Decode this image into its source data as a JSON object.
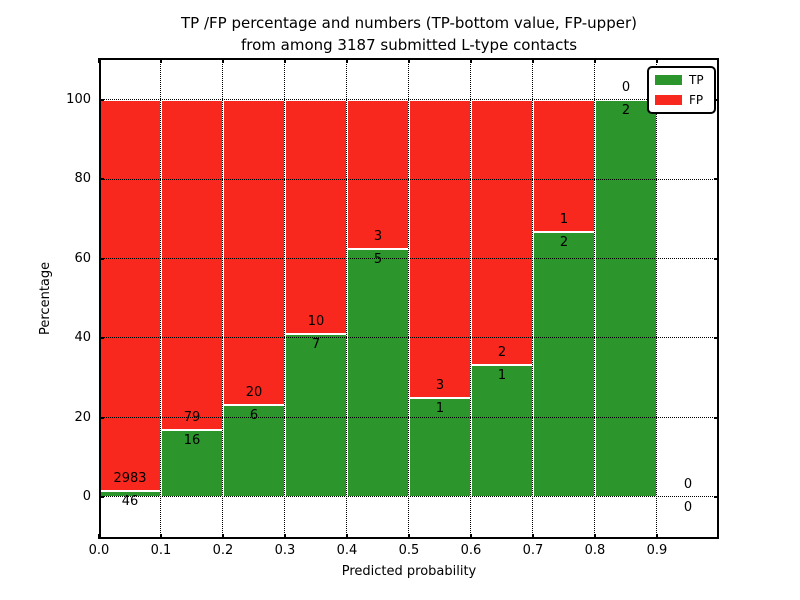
{
  "chart_data": {
    "type": "bar",
    "stacked": true,
    "normalized": "percent",
    "title_line1": "TP /FP percentage and numbers (TP-bottom value, FP-upper)",
    "title_line2": "from among 3187 submitted L-type contacts",
    "xlabel": "Predicted probability",
    "ylabel": "Percentage",
    "total_submitted_contacts": 3187,
    "bin_width": 0.1,
    "bins": [
      {
        "x0": 0.0,
        "tp": 46,
        "fp": 2983
      },
      {
        "x0": 0.1,
        "tp": 16,
        "fp": 79
      },
      {
        "x0": 0.2,
        "tp": 6,
        "fp": 20
      },
      {
        "x0": 0.3,
        "tp": 7,
        "fp": 10
      },
      {
        "x0": 0.4,
        "tp": 5,
        "fp": 3
      },
      {
        "x0": 0.5,
        "tp": 1,
        "fp": 3
      },
      {
        "x0": 0.6,
        "tp": 1,
        "fp": 2
      },
      {
        "x0": 0.7,
        "tp": 2,
        "fp": 1
      },
      {
        "x0": 0.8,
        "tp": 2,
        "fp": 0
      },
      {
        "x0": 0.9,
        "tp": 0,
        "fp": 0
      }
    ],
    "x_ticks": [
      "0.0",
      "0.1",
      "0.2",
      "0.3",
      "0.4",
      "0.5",
      "0.6",
      "0.7",
      "0.8",
      "0.9"
    ],
    "y_ticks": [
      0,
      20,
      40,
      60,
      80,
      100
    ],
    "xlim": [
      0.0,
      1.0
    ],
    "ylim": [
      -10.6,
      110.6
    ],
    "grid": "dotted, drawn above bars",
    "colors": {
      "tp": "#2C962C",
      "fp": "#F8281E",
      "bar_edge": "#ffffff",
      "text": "#000000"
    },
    "legend": {
      "position": "upper right",
      "entries": [
        {
          "label": "TP",
          "color": "#2C962C"
        },
        {
          "label": "FP",
          "color": "#F8281E"
        }
      ]
    }
  }
}
